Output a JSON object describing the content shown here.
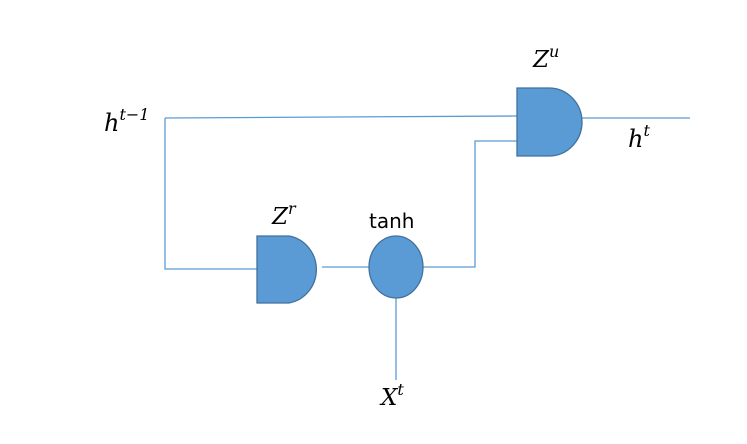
{
  "labels": {
    "h_prev": {
      "base": "h",
      "sup": "t−1"
    },
    "h_out": {
      "base": "h",
      "sup": "t"
    },
    "update_gate": {
      "base": "Z",
      "sup": "u"
    },
    "reset_gate": {
      "base": "Z",
      "sup": "r"
    },
    "activation": "tanh",
    "input": {
      "base": "X",
      "sup": "t"
    }
  },
  "colors": {
    "wire": "#5b9bd5",
    "gate_fill": "#5b9bd5",
    "gate_stroke": "#41719c"
  }
}
